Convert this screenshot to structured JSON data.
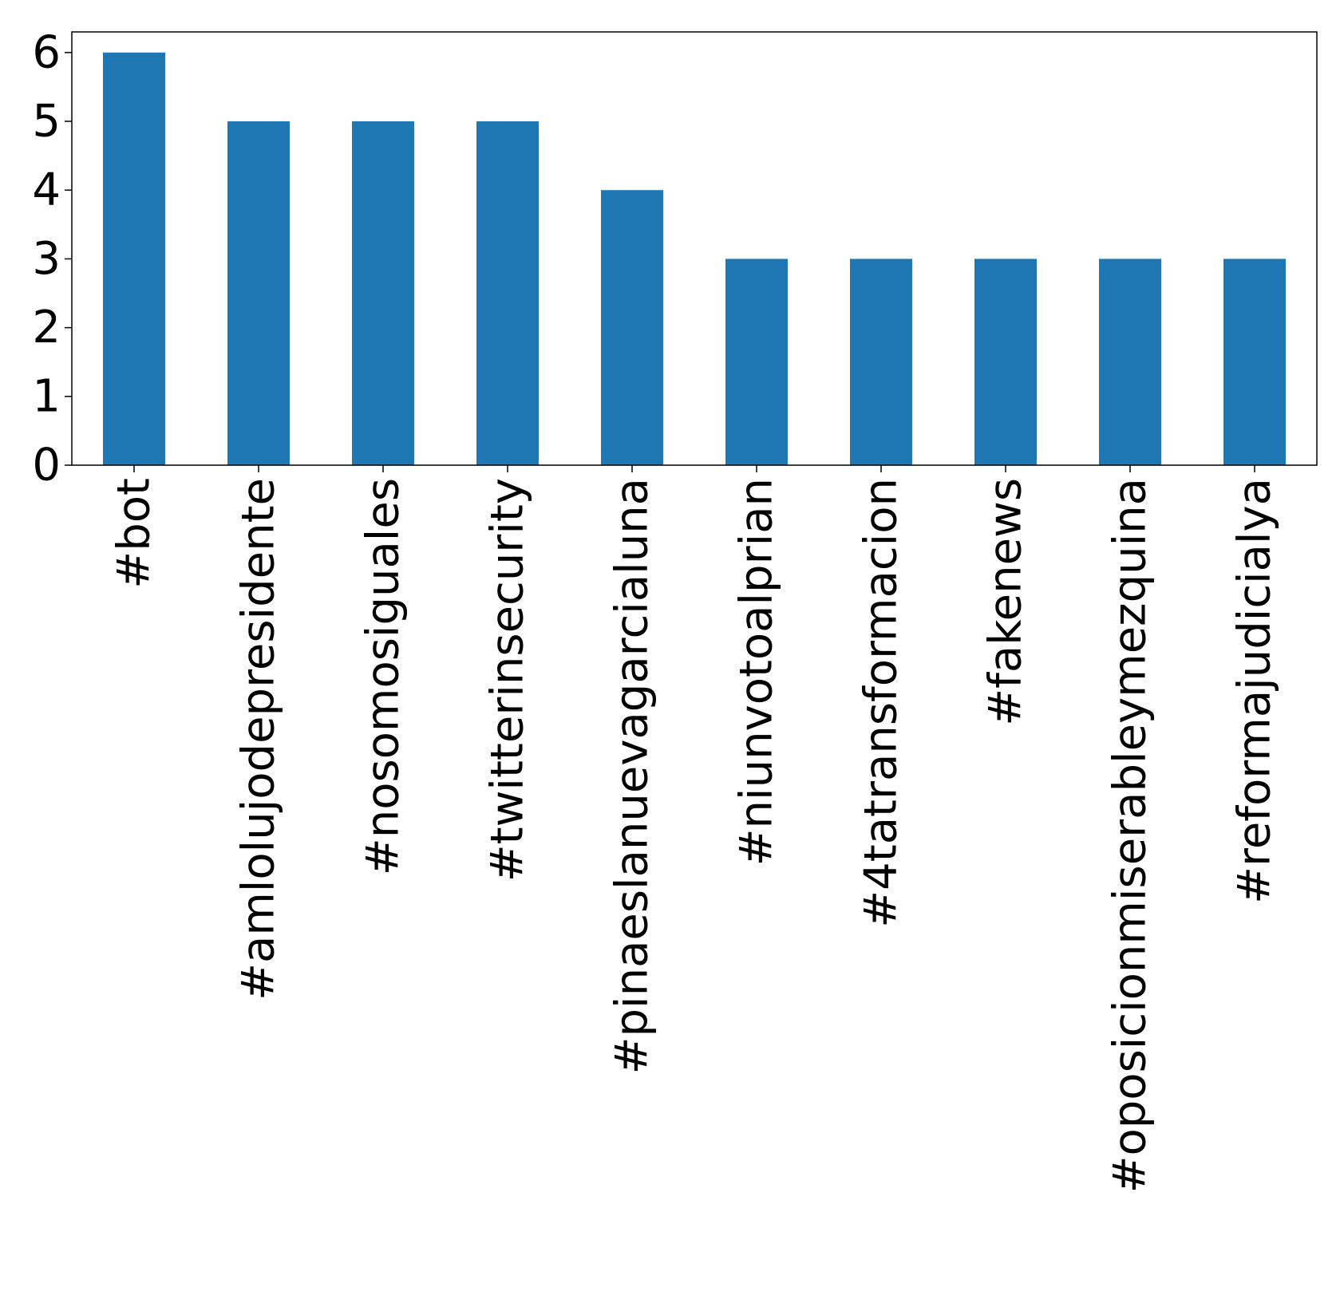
{
  "chart_data": {
    "type": "bar",
    "title": "",
    "xlabel": "",
    "ylabel": "",
    "categories": [
      "#bot",
      "#amlolujodepresidente",
      "#nosomosiguales",
      "#twitterinsecurity",
      "#pinaeslanuevagarcialuna",
      "#niunvotoalprian",
      "#4tatransformacion",
      "#fakenews",
      "#oposicionmiserableymezquina",
      "#reformajudicialya"
    ],
    "values": [
      6,
      5,
      5,
      5,
      4,
      3,
      3,
      3,
      3,
      3
    ],
    "ylim": [
      0,
      6.3
    ],
    "yticks": [
      "0",
      "1",
      "2",
      "3",
      "4",
      "5",
      "6"
    ],
    "bar_color": "#1f77b4",
    "grid": false,
    "legend": "none"
  }
}
